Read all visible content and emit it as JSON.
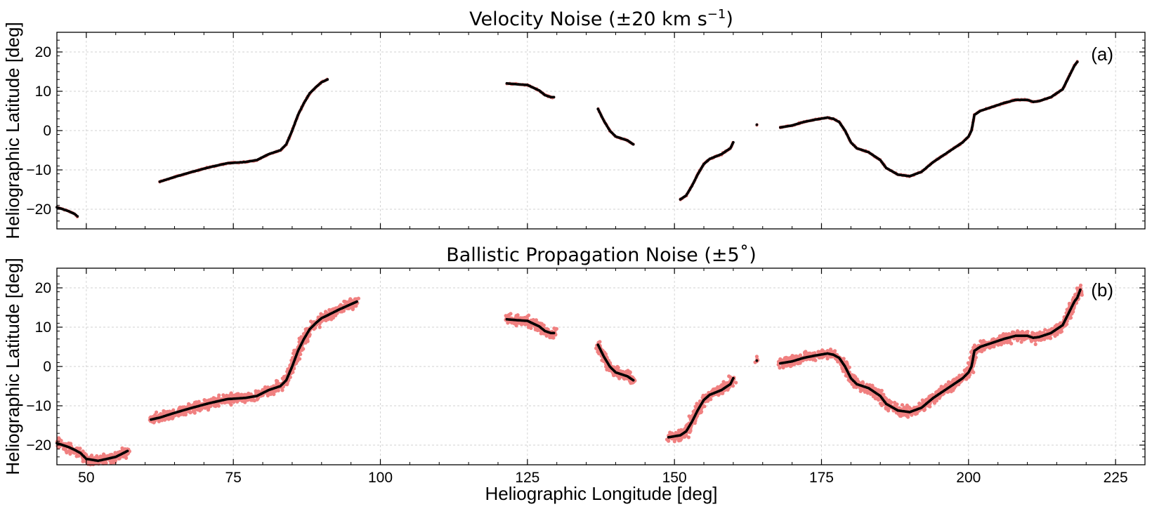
{
  "figure": {
    "xlabel": "Heliographic Longitude [deg]"
  },
  "colors": {
    "noise": "#f08080",
    "nominal": "#000000"
  },
  "chart_data": [
    {
      "type": "scatter",
      "title": "Velocity Noise (±20 km s",
      "title_exponent": "−1",
      "title_close": ")",
      "panel_label": "(a)",
      "ylabel": "Heliographic Latitude [deg]",
      "xlim": [
        45,
        230
      ],
      "ylim": [
        -25,
        25
      ],
      "xticks": [
        50,
        75,
        100,
        125,
        150,
        175,
        200,
        225
      ],
      "xtick_labels": [],
      "yticks": [
        -20,
        -10,
        0,
        10,
        20
      ],
      "ytick_labels": [
        "−20",
        "−10",
        "0",
        "10",
        "20"
      ],
      "grid": true,
      "noise_spread": 0.25,
      "series": [
        {
          "segments": [
            [
              [
                45,
                -19.5
              ],
              [
                46,
                -20.0
              ],
              [
                47,
                -20.5
              ],
              [
                48,
                -21.2
              ],
              [
                48.5,
                -21.8
              ]
            ],
            [
              [
                62.5,
                -13
              ],
              [
                65,
                -11.8
              ],
              [
                68,
                -10.5
              ],
              [
                71,
                -9.3
              ],
              [
                74,
                -8.3
              ],
              [
                77,
                -8.0
              ],
              [
                79,
                -7.5
              ],
              [
                81,
                -6.0
              ],
              [
                83,
                -5.0
              ],
              [
                84,
                -3.5
              ],
              [
                85,
                0
              ],
              [
                86,
                4
              ],
              [
                87,
                7
              ],
              [
                88,
                9.5
              ],
              [
                89,
                11
              ],
              [
                90,
                12.3
              ],
              [
                91,
                13
              ]
            ],
            [
              [
                121.5,
                12
              ],
              [
                123,
                11.8
              ],
              [
                125,
                11.6
              ],
              [
                127,
                10.2
              ],
              [
                128,
                9
              ],
              [
                129,
                8.5
              ],
              [
                129.5,
                8.5
              ]
            ],
            [
              [
                137,
                5.5
              ],
              [
                138,
                2.5
              ],
              [
                139,
                0
              ],
              [
                140,
                -1.5
              ],
              [
                142,
                -2.5
              ],
              [
                143,
                -3.5
              ]
            ],
            [
              [
                151,
                -17.5
              ],
              [
                152,
                -16.5
              ],
              [
                153,
                -14
              ],
              [
                154,
                -11
              ],
              [
                155,
                -8.5
              ],
              [
                156,
                -7.2
              ],
              [
                158,
                -6
              ],
              [
                159.5,
                -4.5
              ],
              [
                160,
                -3
              ]
            ],
            [
              [
                164,
                1.5
              ]
            ],
            [
              [
                168,
                0.8
              ],
              [
                170,
                1.3
              ],
              [
                172,
                2.2
              ],
              [
                174,
                2.8
              ],
              [
                176,
                3.3
              ],
              [
                177,
                3.0
              ],
              [
                178,
                2.2
              ],
              [
                179,
                0
              ],
              [
                180,
                -3
              ],
              [
                181,
                -4.5
              ],
              [
                183,
                -5.5
              ],
              [
                185,
                -7.5
              ],
              [
                186,
                -9.5
              ],
              [
                188,
                -11.2
              ],
              [
                190,
                -11.6
              ],
              [
                192,
                -10.5
              ],
              [
                194,
                -8
              ],
              [
                196,
                -6
              ],
              [
                198,
                -4
              ],
              [
                199,
                -3
              ],
              [
                200,
                -1.5
              ],
              [
                200.5,
                0
              ],
              [
                200.7,
                1.5
              ],
              [
                201,
                4
              ],
              [
                202,
                5
              ],
              [
                204,
                6
              ],
              [
                206,
                7
              ],
              [
                208,
                7.8
              ],
              [
                210,
                7.8
              ],
              [
                211,
                7.3
              ],
              [
                212,
                7.5
              ],
              [
                214,
                8.5
              ],
              [
                216,
                10.5
              ],
              [
                217,
                13.5
              ],
              [
                218,
                16.5
              ],
              [
                218.5,
                17.5
              ]
            ]
          ]
        }
      ]
    },
    {
      "type": "scatter",
      "title": "Ballistic Propagation Noise (±5˚)",
      "panel_label": "(b)",
      "ylabel": "Heliographic Latitude [deg]",
      "xlim": [
        45,
        230
      ],
      "ylim": [
        -25,
        25
      ],
      "xticks": [
        50,
        75,
        100,
        125,
        150,
        175,
        200,
        225
      ],
      "xtick_labels": [
        "50",
        "75",
        "100",
        "125",
        "150",
        "175",
        "200",
        "225"
      ],
      "yticks": [
        -20,
        -10,
        0,
        10,
        20
      ],
      "ytick_labels": [
        "−20",
        "−10",
        "0",
        "10",
        "20"
      ],
      "grid": true,
      "noise_spread": 1.8,
      "series": [
        {
          "segments": [
            [
              [
                45,
                -19.5
              ],
              [
                46,
                -20.0
              ],
              [
                47,
                -20.5
              ],
              [
                48,
                -21.2
              ],
              [
                49,
                -22
              ],
              [
                50,
                -23.5
              ],
              [
                52,
                -24
              ],
              [
                55,
                -23
              ],
              [
                57,
                -21.5
              ]
            ],
            [
              [
                61,
                -13.5
              ],
              [
                62.5,
                -13
              ],
              [
                65,
                -11.8
              ],
              [
                68,
                -10.5
              ],
              [
                71,
                -9.3
              ],
              [
                74,
                -8.3
              ],
              [
                77,
                -8.0
              ],
              [
                79,
                -7.5
              ],
              [
                81,
                -6.0
              ],
              [
                83,
                -5.0
              ],
              [
                84,
                -3.5
              ],
              [
                85,
                0
              ],
              [
                86,
                4
              ],
              [
                87,
                7
              ],
              [
                88,
                9.5
              ],
              [
                89,
                11
              ],
              [
                90,
                12.3
              ],
              [
                91,
                13
              ],
              [
                93,
                14.5
              ],
              [
                96,
                16.5
              ]
            ],
            [
              [
                121.5,
                12
              ],
              [
                123,
                11.8
              ],
              [
                125,
                11.6
              ],
              [
                127,
                10.2
              ],
              [
                128,
                9
              ],
              [
                129,
                8.5
              ],
              [
                129.5,
                8.5
              ]
            ],
            [
              [
                137,
                5.5
              ],
              [
                138,
                2.5
              ],
              [
                139,
                0
              ],
              [
                140,
                -1.5
              ],
              [
                142,
                -2.5
              ],
              [
                143,
                -3.5
              ]
            ],
            [
              [
                149,
                -18
              ],
              [
                151,
                -17.5
              ],
              [
                152,
                -16.5
              ],
              [
                153,
                -14
              ],
              [
                154,
                -11
              ],
              [
                155,
                -8.5
              ],
              [
                156,
                -7.2
              ],
              [
                158,
                -6
              ],
              [
                159.5,
                -4.5
              ],
              [
                160,
                -3
              ]
            ],
            [
              [
                164,
                1.5
              ]
            ],
            [
              [
                168,
                0.8
              ],
              [
                170,
                1.3
              ],
              [
                172,
                2.2
              ],
              [
                174,
                2.8
              ],
              [
                176,
                3.3
              ],
              [
                177,
                3.0
              ],
              [
                178,
                2.2
              ],
              [
                179,
                0
              ],
              [
                180,
                -3
              ],
              [
                181,
                -4.5
              ],
              [
                183,
                -5.5
              ],
              [
                185,
                -7.5
              ],
              [
                186,
                -9.5
              ],
              [
                188,
                -11.2
              ],
              [
                190,
                -11.6
              ],
              [
                192,
                -10.5
              ],
              [
                194,
                -8
              ],
              [
                196,
                -6
              ],
              [
                198,
                -4
              ],
              [
                199,
                -3
              ],
              [
                200,
                -1.5
              ],
              [
                200.5,
                0
              ],
              [
                200.7,
                1.5
              ],
              [
                201,
                4
              ],
              [
                202,
                5
              ],
              [
                204,
                6
              ],
              [
                206,
                7
              ],
              [
                208,
                7.8
              ],
              [
                210,
                7.8
              ],
              [
                211,
                7.3
              ],
              [
                212,
                7.5
              ],
              [
                214,
                8.5
              ],
              [
                216,
                10.5
              ],
              [
                217,
                13.5
              ],
              [
                218,
                16.5
              ],
              [
                218.5,
                17.5
              ],
              [
                219,
                19.5
              ]
            ]
          ]
        }
      ]
    }
  ]
}
